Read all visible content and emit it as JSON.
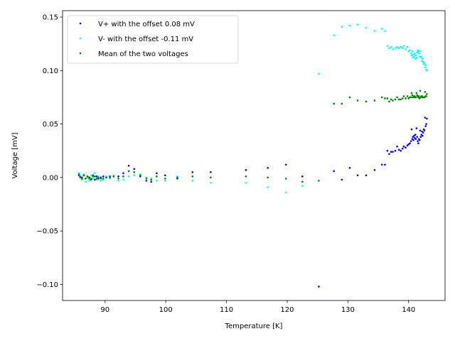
{
  "chart_data": {
    "type": "scatter",
    "title": "",
    "xlabel": "Temperature [K]",
    "ylabel": "Voltage [mV]",
    "xlim": [
      83.0,
      146.0
    ],
    "ylim": [
      -0.115,
      0.156
    ],
    "xticks": [
      90,
      100,
      110,
      120,
      130,
      140
    ],
    "yticks": [
      -0.1,
      -0.05,
      0.0,
      0.05,
      0.1,
      0.15
    ],
    "xtick_labels": [
      "90",
      "100",
      "110",
      "120",
      "130",
      "140"
    ],
    "ytick_labels": [
      "−0.10",
      "−0.05",
      "0.00",
      "0.05",
      "0.10",
      "0.15"
    ],
    "grid": false,
    "legend_position": "top-left",
    "series": [
      {
        "name": "V+ with the offset 0.08 mV",
        "color": "#0000ff",
        "points": [
          [
            85.7,
            0.002
          ],
          [
            85.9,
            0.001
          ],
          [
            86.2,
            0.0
          ],
          [
            86.5,
            0.002
          ],
          [
            86.8,
            -0.001
          ],
          [
            87.1,
            0.001
          ],
          [
            87.4,
            0.0
          ],
          [
            87.7,
            -0.002
          ],
          [
            88.0,
            0.002
          ],
          [
            88.3,
            -0.002
          ],
          [
            88.6,
            0.001
          ],
          [
            88.9,
            -0.001
          ],
          [
            89.3,
            0.0
          ],
          [
            89.7,
            0.001
          ],
          [
            90.2,
            0.0
          ],
          [
            90.8,
            0.001
          ],
          [
            91.4,
            0.001
          ],
          [
            92.2,
            0.001
          ],
          [
            93.0,
            0.004
          ],
          [
            93.9,
            0.011
          ],
          [
            94.8,
            0.008
          ],
          [
            95.8,
            0.001
          ],
          [
            96.8,
            -0.003
          ],
          [
            97.6,
            -0.004
          ],
          [
            98.5,
            0.004
          ],
          [
            99.9,
            0.002
          ],
          [
            101.9,
            -0.001
          ],
          [
            104.4,
            0.005
          ],
          [
            107.4,
            0.005
          ],
          [
            113.2,
            0.007
          ],
          [
            116.8,
            0.009
          ],
          [
            119.8,
            0.012
          ],
          [
            122.5,
            0.001
          ],
          [
            125.2,
            -0.102
          ],
          [
            127.7,
            0.006
          ],
          [
            129.0,
            -0.002
          ],
          [
            130.3,
            0.009
          ],
          [
            131.6,
            0.002
          ],
          [
            133.0,
            0.002
          ],
          [
            134.4,
            0.007
          ],
          [
            135.6,
            0.012
          ],
          [
            136.1,
            0.012
          ],
          [
            136.5,
            0.025
          ],
          [
            136.8,
            0.022
          ],
          [
            137.1,
            0.024
          ],
          [
            137.4,
            0.024
          ],
          [
            137.8,
            0.025
          ],
          [
            138.1,
            0.029
          ],
          [
            138.4,
            0.026
          ],
          [
            138.7,
            0.025
          ],
          [
            139.0,
            0.027
          ],
          [
            139.2,
            0.029
          ],
          [
            139.5,
            0.028
          ],
          [
            139.8,
            0.03
          ],
          [
            140.0,
            0.031
          ],
          [
            140.2,
            0.032
          ],
          [
            140.4,
            0.034
          ],
          [
            140.5,
            0.045
          ],
          [
            140.6,
            0.036
          ],
          [
            140.7,
            0.038
          ],
          [
            140.8,
            0.035
          ],
          [
            140.9,
            0.039
          ],
          [
            141.0,
            0.037
          ],
          [
            141.1,
            0.04
          ],
          [
            141.2,
            0.036
          ],
          [
            141.3,
            0.046
          ],
          [
            141.4,
            0.038
          ],
          [
            141.5,
            0.034
          ],
          [
            141.6,
            0.032
          ],
          [
            141.7,
            0.036
          ],
          [
            141.8,
            0.035
          ],
          [
            141.9,
            0.044
          ],
          [
            142.0,
            0.038
          ],
          [
            142.1,
            0.04
          ],
          [
            142.2,
            0.043
          ],
          [
            142.3,
            0.039
          ],
          [
            142.4,
            0.042
          ],
          [
            142.5,
            0.045
          ],
          [
            142.6,
            0.044
          ],
          [
            142.7,
            0.056
          ],
          [
            142.8,
            0.048
          ],
          [
            142.9,
            0.05
          ],
          [
            143.0,
            0.055
          ]
        ]
      },
      {
        "name": "V- with the offset -0.11 mV",
        "color": "#00ffff",
        "points": [
          [
            85.7,
            0.004
          ],
          [
            85.9,
            0.002
          ],
          [
            86.2,
            -0.002
          ],
          [
            86.5,
            0.003
          ],
          [
            86.8,
            -0.004
          ],
          [
            87.1,
            0.0
          ],
          [
            87.4,
            -0.003
          ],
          [
            87.7,
            0.002
          ],
          [
            88.0,
            -0.001
          ],
          [
            88.3,
            0.004
          ],
          [
            88.6,
            -0.002
          ],
          [
            88.9,
            0.001
          ],
          [
            89.3,
            -0.003
          ],
          [
            89.7,
            -0.002
          ],
          [
            90.2,
            0.001
          ],
          [
            90.8,
            -0.001
          ],
          [
            91.4,
            0.002
          ],
          [
            92.2,
            -0.003
          ],
          [
            93.0,
            -0.002
          ],
          [
            93.9,
            0.001
          ],
          [
            94.8,
            0.002
          ],
          [
            95.8,
            0.003
          ],
          [
            96.8,
            0.0
          ],
          [
            97.6,
            -0.001
          ],
          [
            98.5,
            -0.003
          ],
          [
            99.9,
            -0.003
          ],
          [
            101.9,
            0.001
          ],
          [
            104.4,
            -0.003
          ],
          [
            107.4,
            -0.005
          ],
          [
            113.2,
            -0.005
          ],
          [
            116.8,
            -0.009
          ],
          [
            119.8,
            -0.014
          ],
          [
            122.5,
            -0.008
          ],
          [
            125.2,
            0.097
          ],
          [
            127.7,
            0.133
          ],
          [
            129.0,
            0.141
          ],
          [
            130.3,
            0.142
          ],
          [
            131.6,
            0.143
          ],
          [
            133.0,
            0.14
          ],
          [
            134.4,
            0.137
          ],
          [
            135.6,
            0.139
          ],
          [
            136.1,
            0.137
          ],
          [
            136.5,
            0.123
          ],
          [
            136.8,
            0.121
          ],
          [
            137.1,
            0.122
          ],
          [
            137.4,
            0.12
          ],
          [
            137.8,
            0.121
          ],
          [
            138.1,
            0.122
          ],
          [
            138.4,
            0.121
          ],
          [
            138.7,
            0.122
          ],
          [
            139.0,
            0.121
          ],
          [
            139.2,
            0.123
          ],
          [
            139.5,
            0.12
          ],
          [
            139.8,
            0.122
          ],
          [
            140.0,
            0.118
          ],
          [
            140.2,
            0.119
          ],
          [
            140.4,
            0.116
          ],
          [
            140.5,
            0.114
          ],
          [
            140.6,
            0.118
          ],
          [
            140.7,
            0.112
          ],
          [
            140.8,
            0.115
          ],
          [
            140.9,
            0.113
          ],
          [
            141.0,
            0.116
          ],
          [
            141.1,
            0.111
          ],
          [
            141.2,
            0.114
          ],
          [
            141.3,
            0.112
          ],
          [
            141.4,
            0.117
          ],
          [
            141.5,
            0.119
          ],
          [
            141.6,
            0.118
          ],
          [
            141.7,
            0.116
          ],
          [
            141.8,
            0.113
          ],
          [
            141.9,
            0.118
          ],
          [
            142.0,
            0.113
          ],
          [
            142.1,
            0.112
          ],
          [
            142.2,
            0.109
          ],
          [
            142.3,
            0.111
          ],
          [
            142.4,
            0.108
          ],
          [
            142.5,
            0.106
          ],
          [
            142.6,
            0.107
          ],
          [
            142.7,
            0.103
          ],
          [
            142.8,
            0.105
          ],
          [
            142.9,
            0.101
          ],
          [
            143.0,
            0.1
          ]
        ]
      },
      {
        "name": "Mean of the two voltages",
        "color": "#008000",
        "points": [
          [
            85.7,
            0.003
          ],
          [
            85.9,
            0.0
          ],
          [
            86.2,
            -0.001
          ],
          [
            86.5,
            0.002
          ],
          [
            86.8,
            -0.001
          ],
          [
            87.1,
            0.001
          ],
          [
            87.4,
            -0.001
          ],
          [
            87.7,
            -0.001
          ],
          [
            88.0,
            0.001
          ],
          [
            88.3,
            0.001
          ],
          [
            88.6,
            -0.001
          ],
          [
            88.9,
            0.0
          ],
          [
            89.3,
            -0.001
          ],
          [
            89.7,
            -0.001
          ],
          [
            90.2,
            0.0
          ],
          [
            90.8,
            0.0
          ],
          [
            91.4,
            0.001
          ],
          [
            92.2,
            -0.001
          ],
          [
            93.0,
            0.001
          ],
          [
            93.9,
            0.006
          ],
          [
            94.8,
            0.005
          ],
          [
            95.8,
            0.002
          ],
          [
            96.8,
            -0.001
          ],
          [
            97.6,
            -0.002
          ],
          [
            98.5,
            0.001
          ],
          [
            99.9,
            -0.001
          ],
          [
            101.9,
            0.0
          ],
          [
            104.4,
            0.001
          ],
          [
            107.4,
            0.0
          ],
          [
            113.2,
            0.001
          ],
          [
            116.8,
            0.0
          ],
          [
            119.8,
            -0.001
          ],
          [
            122.5,
            -0.004
          ],
          [
            125.2,
            -0.003
          ],
          [
            127.7,
            0.069
          ],
          [
            129.0,
            0.069
          ],
          [
            130.3,
            0.075
          ],
          [
            131.6,
            0.072
          ],
          [
            133.0,
            0.071
          ],
          [
            134.4,
            0.072
          ],
          [
            135.6,
            0.075
          ],
          [
            136.1,
            0.074
          ],
          [
            136.5,
            0.074
          ],
          [
            136.8,
            0.071
          ],
          [
            137.1,
            0.073
          ],
          [
            137.4,
            0.072
          ],
          [
            137.8,
            0.073
          ],
          [
            138.1,
            0.075
          ],
          [
            138.4,
            0.073
          ],
          [
            138.7,
            0.073
          ],
          [
            139.0,
            0.074
          ],
          [
            139.2,
            0.076
          ],
          [
            139.5,
            0.074
          ],
          [
            139.8,
            0.076
          ],
          [
            140.0,
            0.074
          ],
          [
            140.2,
            0.075
          ],
          [
            140.4,
            0.075
          ],
          [
            140.5,
            0.079
          ],
          [
            140.6,
            0.077
          ],
          [
            140.7,
            0.075
          ],
          [
            140.8,
            0.075
          ],
          [
            140.9,
            0.076
          ],
          [
            141.0,
            0.076
          ],
          [
            141.1,
            0.075
          ],
          [
            141.2,
            0.075
          ],
          [
            141.3,
            0.079
          ],
          [
            141.4,
            0.077
          ],
          [
            141.5,
            0.076
          ],
          [
            141.6,
            0.075
          ],
          [
            141.7,
            0.076
          ],
          [
            141.8,
            0.074
          ],
          [
            141.9,
            0.081
          ],
          [
            142.0,
            0.075
          ],
          [
            142.1,
            0.076
          ],
          [
            142.2,
            0.076
          ],
          [
            142.3,
            0.075
          ],
          [
            142.4,
            0.075
          ],
          [
            142.5,
            0.075
          ],
          [
            142.6,
            0.075
          ],
          [
            142.7,
            0.08
          ],
          [
            142.8,
            0.076
          ],
          [
            142.9,
            0.076
          ],
          [
            143.0,
            0.078
          ]
        ]
      }
    ]
  }
}
